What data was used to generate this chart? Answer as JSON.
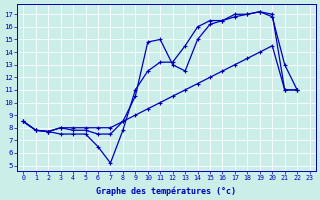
{
  "bg_color": "#cceee8",
  "line_color": "#0000bb",
  "xlabel": "Graphe des températures (°c)",
  "x_ticks": [
    0,
    1,
    2,
    3,
    4,
    5,
    6,
    7,
    8,
    9,
    10,
    11,
    12,
    13,
    14,
    15,
    16,
    17,
    18,
    19,
    20,
    21,
    22,
    23
  ],
  "y_ticks": [
    5,
    6,
    7,
    8,
    9,
    10,
    11,
    12,
    13,
    14,
    15,
    16,
    17
  ],
  "ylim": [
    4.6,
    17.8
  ],
  "xlim": [
    -0.5,
    23.5
  ],
  "line1_x": [
    0,
    1,
    2,
    3,
    4,
    5,
    6,
    7,
    8,
    9,
    10,
    11,
    12,
    13,
    14,
    15,
    16,
    17,
    18,
    19,
    20,
    21,
    22
  ],
  "line1_y": [
    8.5,
    7.8,
    7.7,
    7.5,
    7.5,
    7.5,
    6.5,
    5.2,
    7.8,
    11.0,
    12.5,
    13.2,
    13.2,
    14.5,
    16.0,
    16.5,
    16.5,
    17.0,
    17.0,
    17.2,
    16.8,
    13.0,
    11.0
  ],
  "line2_x": [
    0,
    1,
    2,
    3,
    4,
    5,
    6,
    7,
    8,
    9,
    10,
    11,
    12,
    13,
    14,
    15,
    16,
    17,
    18,
    19,
    20,
    21,
    22
  ],
  "line2_y": [
    8.5,
    7.8,
    7.7,
    8.0,
    7.8,
    7.8,
    7.5,
    7.5,
    8.5,
    10.5,
    14.8,
    15.0,
    13.0,
    12.5,
    15.0,
    16.2,
    16.5,
    16.8,
    17.0,
    17.2,
    17.0,
    11.0,
    11.0
  ],
  "line3_x": [
    0,
    1,
    2,
    3,
    4,
    5,
    6,
    7,
    8,
    9,
    10,
    11,
    12,
    13,
    14,
    15,
    16,
    17,
    18,
    19,
    20,
    21,
    22
  ],
  "line3_y": [
    8.5,
    7.8,
    7.7,
    8.0,
    8.0,
    8.0,
    8.0,
    8.0,
    8.5,
    9.0,
    9.5,
    10.0,
    10.5,
    11.0,
    11.5,
    12.0,
    12.5,
    13.0,
    13.5,
    14.0,
    14.5,
    11.0,
    11.0
  ]
}
